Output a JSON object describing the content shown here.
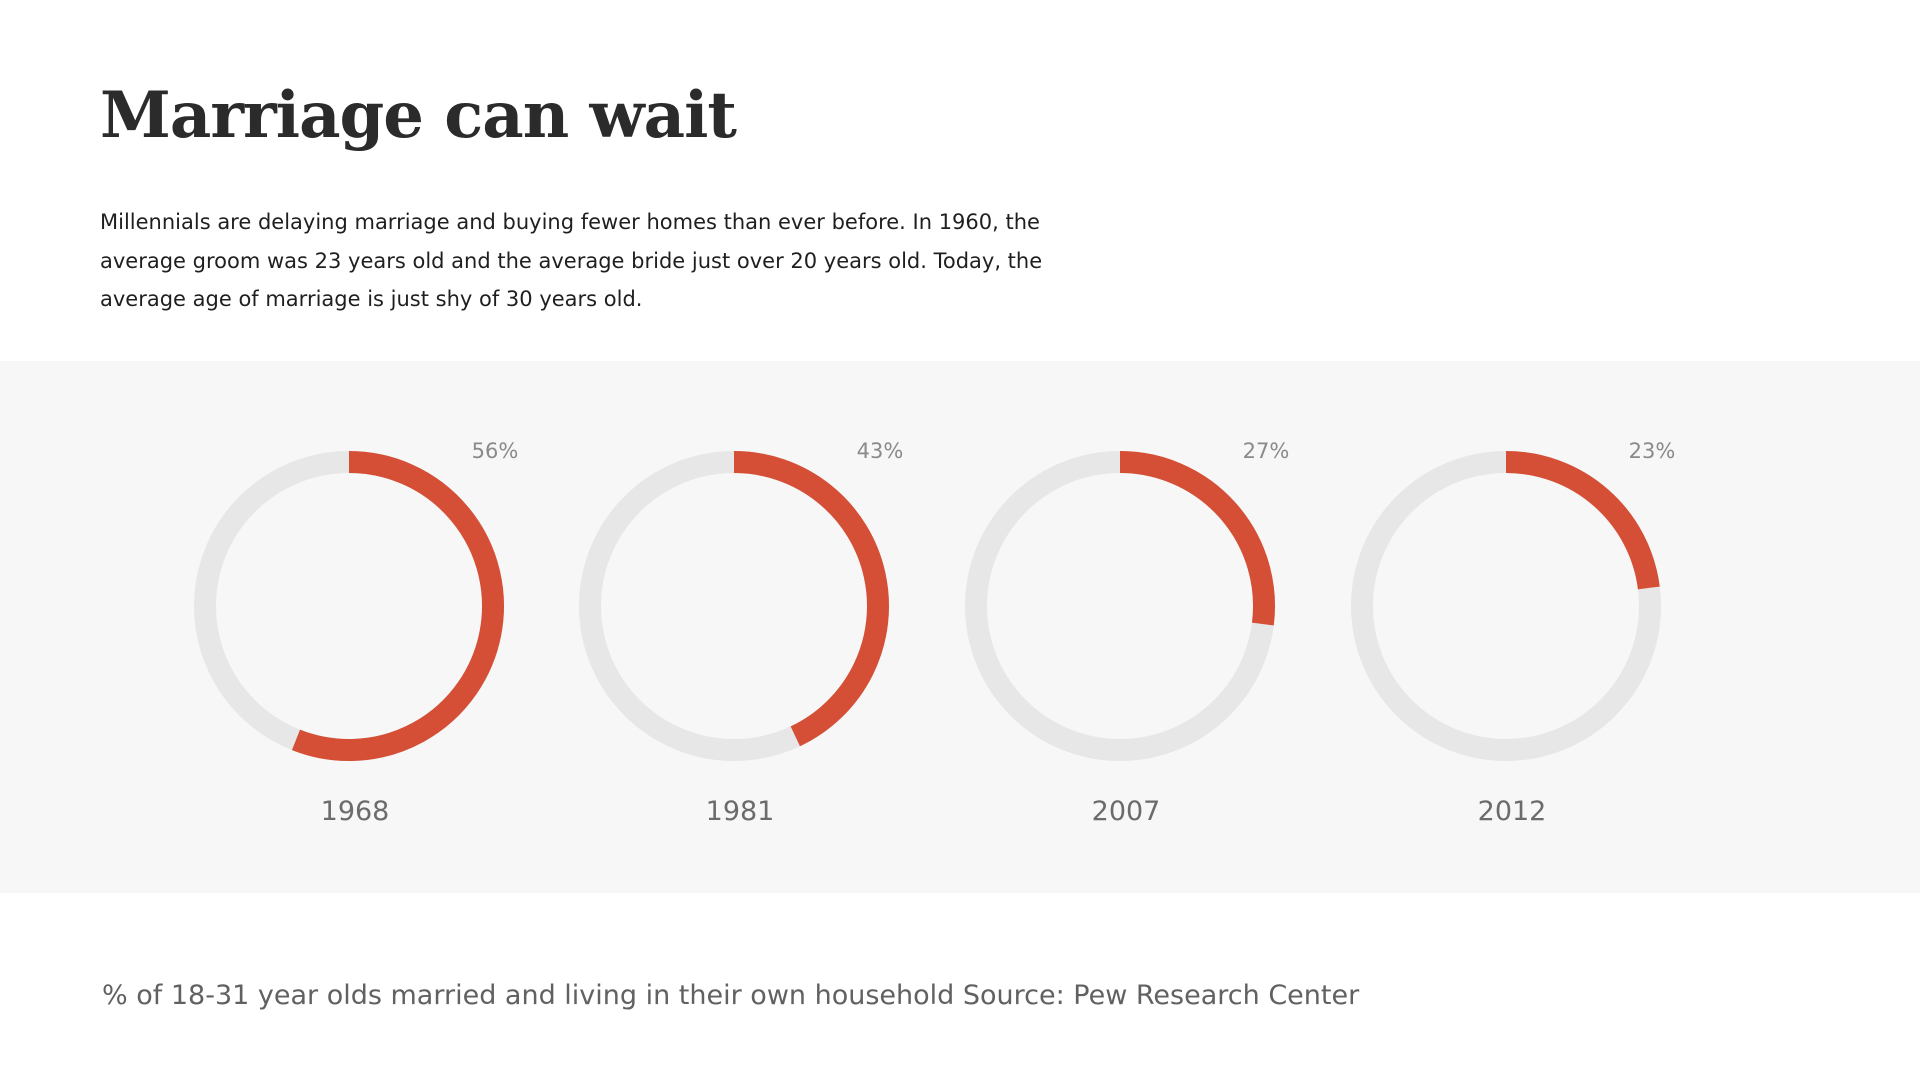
{
  "header": {
    "title": "Marriage can wait",
    "intro": "Millennials are delaying marriage and buying fewer homes than ever before. In 1960, the average groom was 23 years old and the average bride just over 20 years old. Today, the average age of marriage is just shy of 30 years old."
  },
  "colors": {
    "accent": "#d54f36",
    "track": "#e7e7e7",
    "panel_background": "#f7f7f7"
  },
  "chart_data": {
    "type": "pie",
    "variant": "donut-progress",
    "title": "Marriage can wait",
    "categories": [
      "1968",
      "1981",
      "2007",
      "2012"
    ],
    "values": [
      56,
      43,
      27,
      23
    ],
    "value_labels": [
      "56%",
      "43%",
      "27%",
      "23%"
    ],
    "unit": "%",
    "range": [
      0,
      100
    ],
    "description": "% of 18-31 year olds married and living in their own household"
  },
  "footer": {
    "caption": "% of 18-31 year olds married and living in their own household Source: Pew Research Center"
  }
}
